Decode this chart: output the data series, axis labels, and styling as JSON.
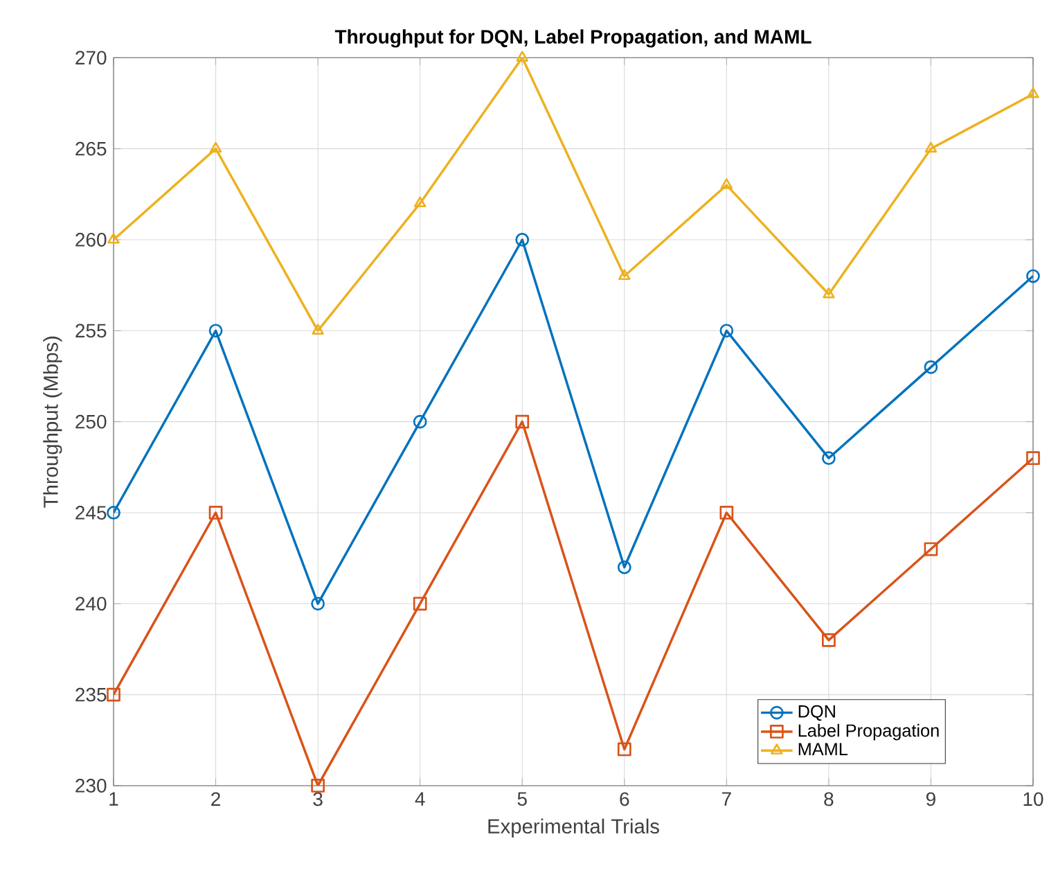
{
  "chart_data": {
    "type": "line",
    "title": "**Throughput for DQN, Label Propagation, and MAML**",
    "xlabel": "Experimental Trials",
    "ylabel": "Throughput (Mbps)",
    "x": [
      1,
      2,
      3,
      4,
      5,
      6,
      7,
      8,
      9,
      10
    ],
    "series": [
      {
        "name": "DQN",
        "color": "#0072bd",
        "marker": "circle",
        "values": [
          245,
          255,
          240,
          250,
          260,
          242,
          255,
          248,
          253,
          258
        ]
      },
      {
        "name": "Label Propagation",
        "color": "#d95319",
        "marker": "square",
        "values": [
          235,
          245,
          230,
          240,
          250,
          232,
          245,
          238,
          243,
          248
        ]
      },
      {
        "name": "MAML",
        "color": "#edb120",
        "marker": "triangle",
        "values": [
          260,
          265,
          255,
          262,
          270,
          258,
          263,
          257,
          265,
          268
        ]
      }
    ],
    "xlim": [
      1,
      10
    ],
    "xticks": [
      1,
      2,
      3,
      4,
      5,
      6,
      7,
      8,
      9,
      10
    ],
    "ylim": [
      230,
      270
    ],
    "yticks": [
      230,
      235,
      240,
      245,
      250,
      255,
      260,
      265,
      270
    ],
    "grid": true,
    "legend": "bottom right",
    "line_style": "solid"
  }
}
